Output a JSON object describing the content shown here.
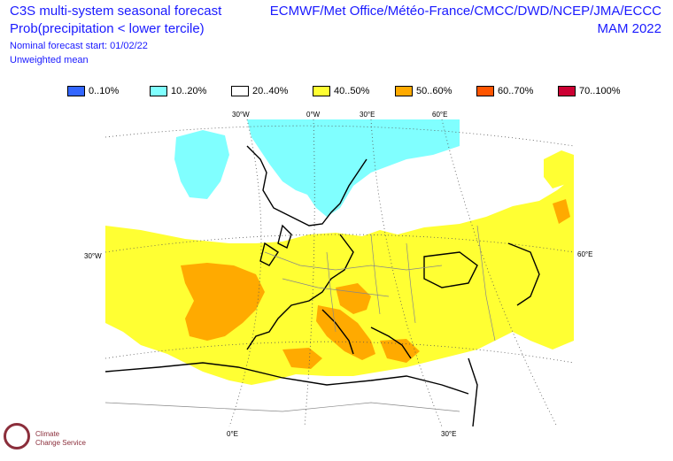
{
  "header": {
    "title_line1": "C3S multi-system seasonal forecast",
    "title_line2": "Prob(precipitation < lower tercile)",
    "subtitle_line1": "Nominal forecast start: 01/02/22",
    "subtitle_line2": "Unweighted mean",
    "systems": "ECMWF/Met Office/Météo-France/CMCC/DWD/NCEP/JMA/ECCC",
    "period": "MAM 2022"
  },
  "legend": [
    {
      "label": "0..10%",
      "color": "#3366ff"
    },
    {
      "label": "10..20%",
      "color": "#80ffff"
    },
    {
      "label": "20..40%",
      "color": "#ffffff"
    },
    {
      "label": "40..50%",
      "color": "#ffff33"
    },
    {
      "label": "50..60%",
      "color": "#ffaa00"
    },
    {
      "label": "60..70%",
      "color": "#ff5500"
    },
    {
      "label": "70..100%",
      "color": "#cc0033"
    }
  ],
  "axes": {
    "top": [
      "30°W",
      "0°W",
      "30°E",
      "60°E"
    ],
    "left": "30°W",
    "right": "60°E",
    "bottom": [
      "0°E",
      "30°E"
    ]
  },
  "map_colors": {
    "land_white": "#ffffff",
    "blue_low": "#80ffff",
    "yellow": "#ffff33",
    "orange": "#ffaa00",
    "coast": "#000000",
    "grid": "#555555"
  },
  "logo": {
    "line1": "Climate",
    "line2": "Change Service"
  }
}
